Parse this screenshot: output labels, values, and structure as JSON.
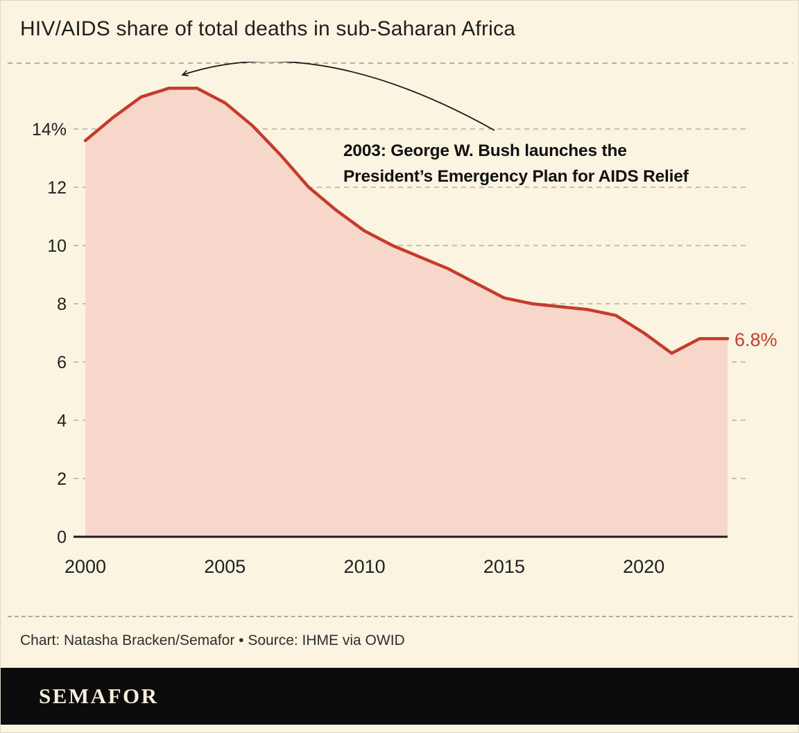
{
  "title": "HIV/AIDS share of total deaths in sub-Saharan Africa",
  "annotation": {
    "line1": "2003: George W. Bush launches the",
    "line2": "President’s Emergency Plan for AIDS Relief"
  },
  "end_label": "6.8%",
  "credit": "Chart: Natasha Bracken/Semafor • Source: IHME via OWID",
  "brand": "SEMAFOR",
  "colors": {
    "background": "#FAF4E1",
    "line": "#C43C2C",
    "area_fill": "#F8D7CB",
    "grid": "#B3AF9F",
    "axis": "#1C1C1C",
    "text": "#1F1F1F",
    "accent_label": "#C43C2C",
    "footer_bar": "#0C0C0C",
    "brand_text": "#F6EEDC",
    "arrow": "#1A1A1A"
  },
  "chart_data": {
    "type": "area",
    "title": "HIV/AIDS share of total deaths in sub-Saharan Africa",
    "x": [
      2000,
      2001,
      2002,
      2003,
      2004,
      2005,
      2006,
      2007,
      2008,
      2009,
      2010,
      2011,
      2012,
      2013,
      2014,
      2015,
      2016,
      2017,
      2018,
      2019,
      2020,
      2021,
      2022,
      2023
    ],
    "values": [
      13.6,
      14.4,
      15.1,
      15.4,
      15.4,
      14.9,
      14.1,
      13.1,
      12.0,
      11.2,
      10.5,
      10.0,
      9.6,
      9.2,
      8.7,
      8.2,
      8.0,
      7.9,
      7.8,
      7.6,
      7.0,
      6.3,
      6.8,
      6.8
    ],
    "xlabel": "",
    "ylabel": "",
    "ylim": [
      0,
      15.5
    ],
    "yticks": [
      0,
      2,
      4,
      6,
      8,
      10,
      12,
      14
    ],
    "ytick_labels": [
      "0",
      "2",
      "4",
      "6",
      "8",
      "10",
      "12",
      "14%"
    ],
    "xticks": [
      2000,
      2005,
      2010,
      2015,
      2020
    ],
    "grid": "horizontal-dashed",
    "legend": "none",
    "annotation": "2003: George W. Bush launches the President’s Emergency Plan for AIDS Relief",
    "end_value_label": "6.8%",
    "peak_value": 15.4,
    "peak_years": [
      2003,
      2004
    ],
    "latest_value": 6.8
  }
}
